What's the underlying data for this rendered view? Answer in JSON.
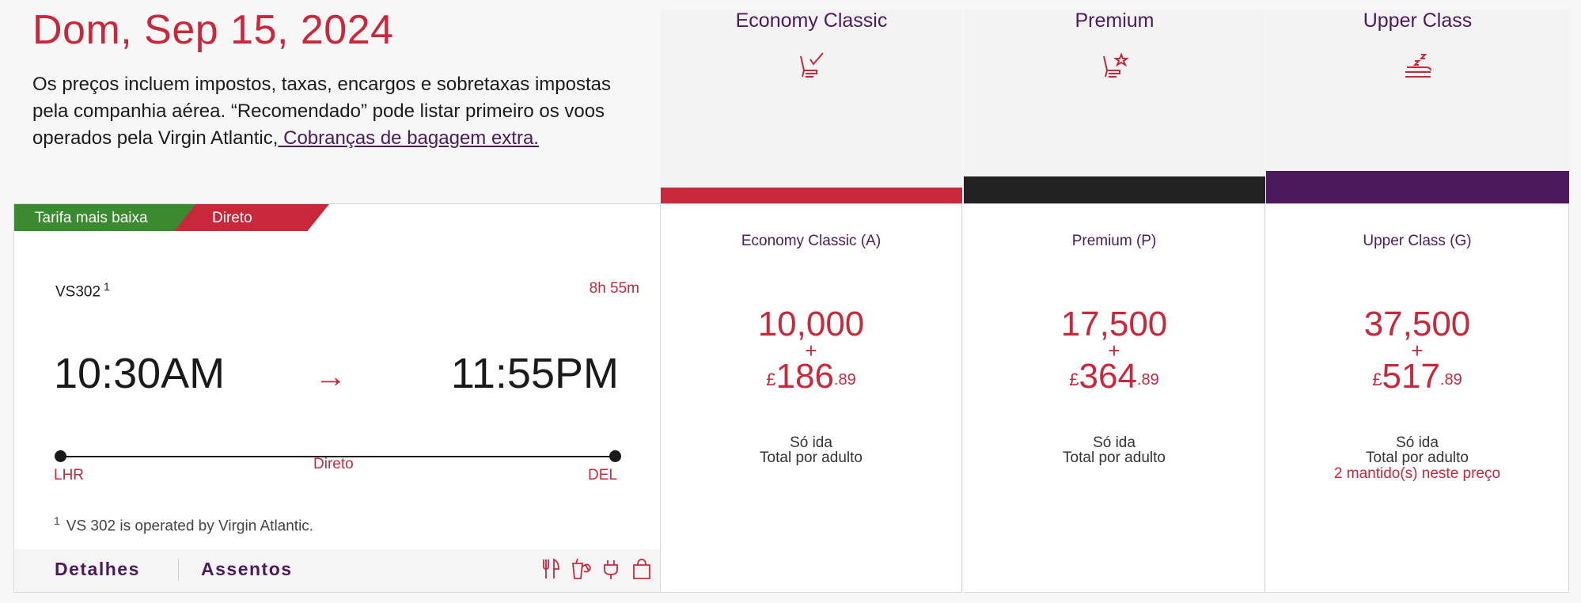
{
  "header": {
    "date": "Dom, Sep 15, 2024",
    "notice_text": "Os preços incluem impostos, taxas, encargos e sobretaxas impostas pela companhia aérea. “Recomendado” pode listar primeiro os voos operados pela Virgin Atlantic,",
    "notice_link": " Cobranças de bagagem extra."
  },
  "cabins": [
    {
      "name": "Economy Classic",
      "icon": "seat-check-icon",
      "bar_color": "#c8283a"
    },
    {
      "name": "Premium",
      "icon": "seat-star-icon",
      "bar_color": "#222222"
    },
    {
      "name": "Upper Class",
      "icon": "flat-bed-icon",
      "bar_color": "#4c1a5c"
    }
  ],
  "flight": {
    "badge_low": "Tarifa mais baixa",
    "badge_direct": "Direto",
    "number": "VS302",
    "number_footnote": "1",
    "duration": "8h 55m",
    "departure_time": "10:30AM",
    "arrival_time": "11:55PM",
    "origin": "LHR",
    "destination": "DEL",
    "route_label": "Direto",
    "footnote_mark": "1",
    "footnote": "VS 302 is operated by Virgin Atlantic.",
    "tab_details": "Detalhes",
    "tab_seats": "Assentos",
    "amenities": [
      "meal-icon",
      "drink-icon",
      "power-icon",
      "bag-icon"
    ]
  },
  "fares": [
    {
      "name": "Economy Classic (A)",
      "points": "10,000",
      "plus": "+",
      "currency": "£",
      "pounds": "186",
      "pence": ".89",
      "trip": "Só ida",
      "per": "Total por adulto",
      "warning": ""
    },
    {
      "name": "Premium (P)",
      "points": "17,500",
      "plus": "+",
      "currency": "£",
      "pounds": "364",
      "pence": ".89",
      "trip": "Só ida",
      "per": "Total por adulto",
      "warning": ""
    },
    {
      "name": "Upper Class (G)",
      "points": "37,500",
      "plus": "+",
      "currency": "£",
      "pounds": "517",
      "pence": ".89",
      "trip": "Só ida",
      "per": "Total por adulto",
      "warning": "2 mantido(s) neste preço"
    }
  ]
}
